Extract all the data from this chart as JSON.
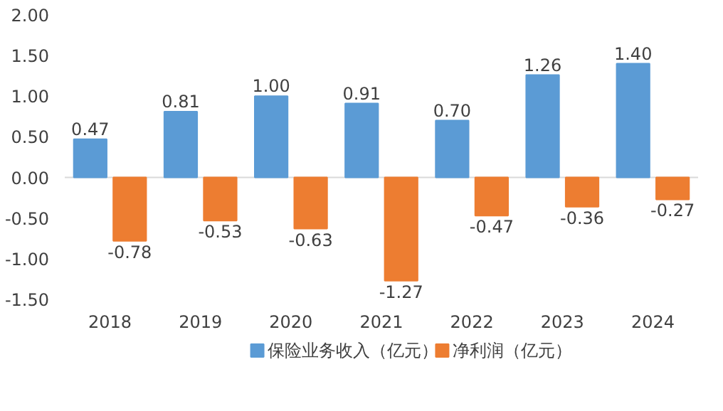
{
  "chart_data": {
    "type": "bar",
    "categories": [
      "2018",
      "2019",
      "2020",
      "2021",
      "2022",
      "2023",
      "2024"
    ],
    "series": [
      {
        "name": "保险业务收入（亿元）",
        "color": "#5b9bd5",
        "values": [
          0.47,
          0.81,
          1.0,
          0.91,
          0.7,
          1.26,
          1.4
        ],
        "value_labels": [
          "0.47",
          "0.81",
          "1.00",
          "0.91",
          "0.70",
          "1.26",
          "1.40"
        ]
      },
      {
        "name": "净利润（亿元）",
        "color": "#ed7d31",
        "values": [
          -0.78,
          -0.53,
          -0.63,
          -1.27,
          -0.47,
          -0.36,
          -0.27
        ],
        "value_labels": [
          "-0.78",
          "-0.53",
          "-0.63",
          "-1.27",
          "-0.47",
          "-0.36",
          "-0.27"
        ]
      }
    ],
    "ylim": [
      -1.5,
      2.0
    ],
    "yticks": [
      {
        "value": -1.5,
        "label": "-1.50"
      },
      {
        "value": -1.0,
        "label": "-1.00"
      },
      {
        "value": -0.5,
        "label": "-0.50"
      },
      {
        "value": 0,
        "label": "0.00"
      },
      {
        "value": 0.5,
        "label": "0.50"
      },
      {
        "value": 1.0,
        "label": "1.00"
      },
      {
        "value": 1.5,
        "label": "1.50"
      },
      {
        "value": 2.0,
        "label": "2.00"
      }
    ],
    "legend": "bottom"
  }
}
